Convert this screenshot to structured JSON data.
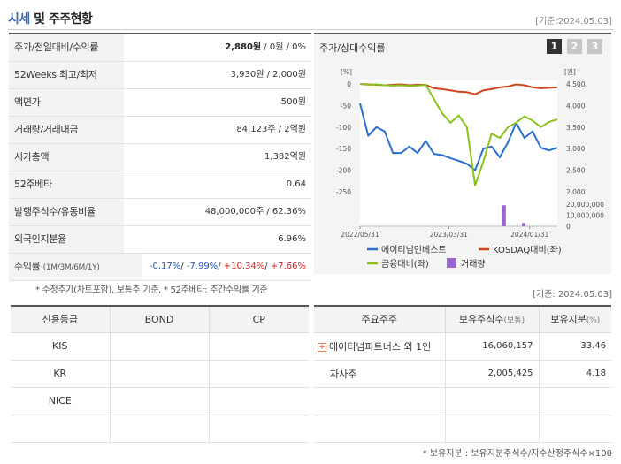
{
  "header": {
    "title_accent": "시세",
    "title_rest": "및 주주현황",
    "date": "[기준:2024.05.03]"
  },
  "info_rows": [
    {
      "label": "주가/전일대비/수익률",
      "value_bold": "2,880원",
      "value_rest": " / 0원 / 0%"
    },
    {
      "label": "52Weeks 최고/최저",
      "value": "3,930원 / 2,000원"
    },
    {
      "label": "액면가",
      "value": "500원"
    },
    {
      "label": "거래량/거래대금",
      "value": "84,123주 / 2억원"
    },
    {
      "label": "시가총액",
      "value": "1,382억원"
    },
    {
      "label": "52주베타",
      "value": "0.64"
    },
    {
      "label": "발행주식수/유동비율",
      "value": "48,000,000주 / 62.36%"
    },
    {
      "label": "외국인지분율",
      "value": "6.96%"
    }
  ],
  "return_row": {
    "label": "수익률",
    "label_small": "(1M/3M/6M/1Y)",
    "r1": "-0.17%",
    "r2": "-7.99%",
    "r3": "+10.34%",
    "r4": "+7.66%"
  },
  "note1": "* 수정주가(차트포함), 보통주 기준, * 52주베타: 주간수익률 기준",
  "chart_panel": {
    "title": "주가/상대수익률",
    "tabs": [
      "1",
      "2",
      "3"
    ]
  },
  "chart_data": {
    "type": "line",
    "left_unit": "[%]",
    "right_unit": "[원]",
    "left_ticks": [
      "0",
      "-50",
      "-100",
      "-150",
      "-200",
      "-250"
    ],
    "right_ticks": [
      "4,500",
      "4,000",
      "3,500",
      "3,000",
      "2,500",
      "2,000"
    ],
    "volume_ticks": [
      "20,000,000",
      "10,000,000",
      "0"
    ],
    "x_labels": [
      "2022/05/31",
      "2023/03/31",
      "2024/01/31"
    ],
    "series": [
      {
        "name": "에이티넘인베스트",
        "axis": "right",
        "color": "#2a6fcf",
        "values": [
          4050,
          3300,
          3500,
          3400,
          2900,
          2900,
          3050,
          2900,
          3180,
          2880,
          2850,
          2780,
          2720,
          2650,
          2500,
          3000,
          3050,
          2800,
          3150,
          3600,
          3250,
          3400,
          3020,
          2960,
          3020
        ]
      },
      {
        "name": "KOSDAQ대비(좌)",
        "axis": "left",
        "color": "#d2451e",
        "values": [
          0,
          -1,
          -2,
          -3,
          -2,
          -1,
          -3,
          -2,
          -2,
          -10,
          -12,
          -15,
          -18,
          -19,
          -24,
          -15,
          -12,
          -8,
          -6,
          -1,
          -3,
          -8,
          -10,
          -9,
          -8
        ]
      },
      {
        "name": "금융대비(좌)",
        "axis": "left",
        "color": "#8ac21e",
        "values": [
          0,
          -2,
          -1,
          -3,
          -4,
          -3,
          -5,
          -4,
          -2,
          -35,
          -68,
          -90,
          -73,
          -100,
          -235,
          -180,
          -115,
          -125,
          -100,
          -90,
          -75,
          -85,
          -100,
          -88,
          -82
        ]
      }
    ],
    "volume": {
      "name": "거래량",
      "color": "#9966cc",
      "bars": [
        {
          "pos": 0.73,
          "value": 19000000
        },
        {
          "pos": 0.83,
          "value": 3000000
        }
      ]
    },
    "ylim_left": [
      -250,
      0
    ],
    "ylim_right": [
      2000,
      4500
    ]
  },
  "date2": "[기준: 2024.05.03]",
  "credit_table": {
    "headers": [
      "신용등급",
      "BOND",
      "CP"
    ],
    "rows": [
      [
        "KIS",
        "",
        ""
      ],
      [
        "KR",
        "",
        ""
      ],
      [
        "NICE",
        "",
        ""
      ],
      [
        "",
        "",
        ""
      ]
    ]
  },
  "share_table": {
    "h1": "주요주주",
    "h2": "보유주식수",
    "h2_small": "(보통)",
    "h3": "보유지분",
    "h3_small": "(%)",
    "rows": [
      {
        "name": "에이티넘파트너스 외 1인",
        "shares": "16,060,157",
        "pct": "33.46",
        "plus": "+"
      },
      {
        "name": "자사주",
        "shares": "2,005,425",
        "pct": "4.18"
      },
      {
        "name": "",
        "shares": "",
        "pct": ""
      },
      {
        "name": "",
        "shares": "",
        "pct": ""
      }
    ]
  },
  "note2": "* 보유지분 : 보유지분주식수/지수산정주식수×100"
}
